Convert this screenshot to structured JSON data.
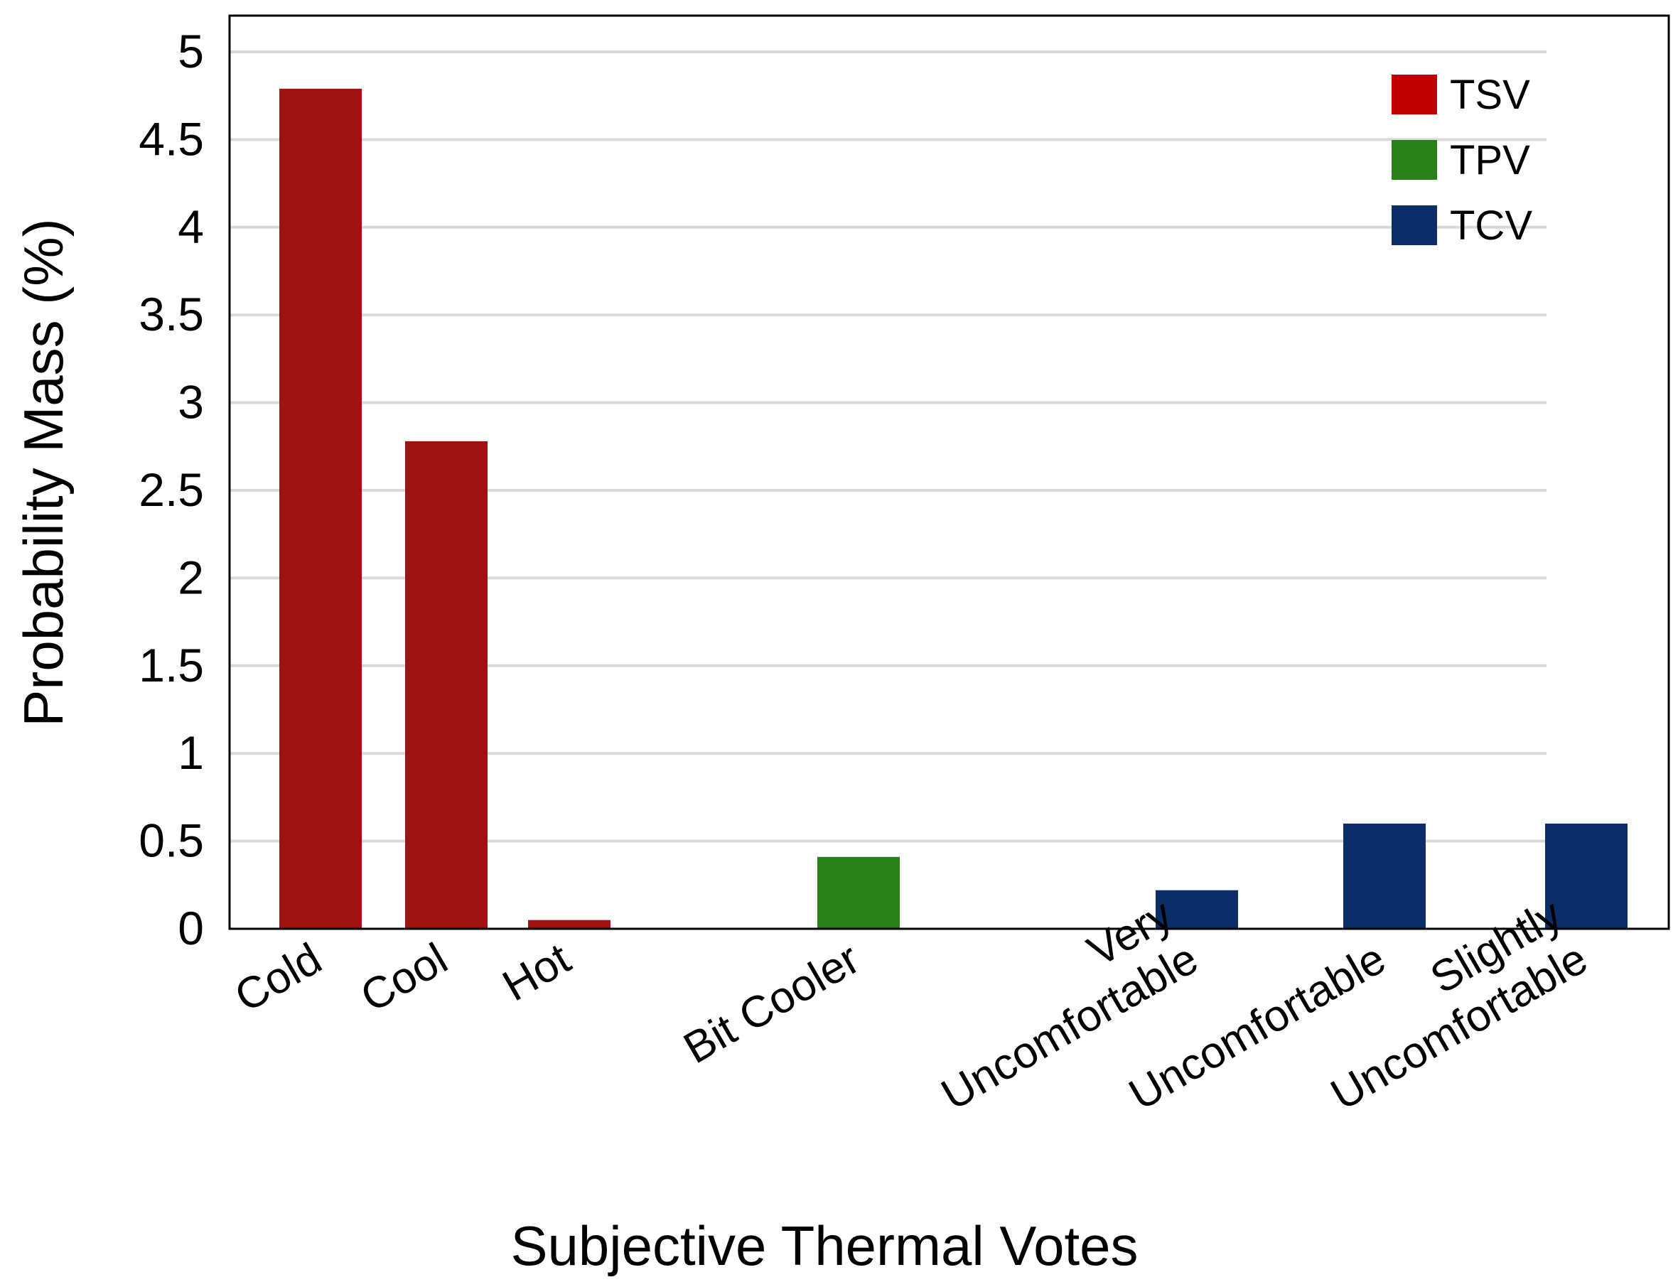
{
  "chart_data": {
    "type": "bar",
    "title": "",
    "xlabel": "Subjective Thermal Votes",
    "ylabel": "Probability Mass  (%)",
    "ylim": [
      0,
      5.2
    ],
    "yticks": [
      "0",
      "0.5",
      "1",
      "1.5",
      "2",
      "2.5",
      "3",
      "3.5",
      "4",
      "4.5",
      "5"
    ],
    "grid": true,
    "legend_position": "top-right",
    "series": [
      {
        "name": "TSV",
        "color": "#c00000",
        "bar_color": "#9e1214"
      },
      {
        "name": "TPV",
        "color": "#2a8018",
        "bar_color": "#2a8018"
      },
      {
        "name": "TCV",
        "color": "#0b2e68",
        "bar_color": "#0b2e68"
      }
    ],
    "categories": [
      {
        "label_lines": [
          "Cold"
        ],
        "series": "TSV",
        "value": 4.79
      },
      {
        "label_lines": [
          "Cool"
        ],
        "series": "TSV",
        "value": 2.78
      },
      {
        "label_lines": [
          "Hot"
        ],
        "series": "TSV",
        "value": 0.05
      },
      {
        "label_lines": [
          "Bit Cooler"
        ],
        "series": "TPV",
        "value": 0.41
      },
      {
        "label_lines": [
          "Very",
          "Uncomfortable"
        ],
        "series": "TCV",
        "value": 0.22
      },
      {
        "label_lines": [
          "Uncomfortable"
        ],
        "series": "TCV",
        "value": 0.6
      },
      {
        "label_lines": [
          "Slightly",
          "Uncomfortable"
        ],
        "series": "TCV",
        "value": 0.6
      }
    ]
  }
}
